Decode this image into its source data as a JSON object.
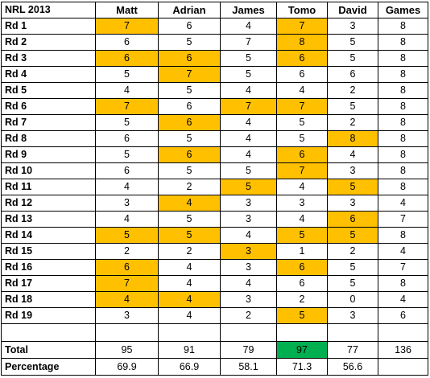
{
  "sheet": {
    "corner_label": "NRL 2013",
    "columns": [
      "Matt",
      "Adrian",
      "James",
      "Tomo",
      "David",
      "Games"
    ],
    "highlight_colors": {
      "best": "#ffc000",
      "winner": "#00b050"
    },
    "rows": [
      {
        "label": "Rd 1",
        "values": [
          "7",
          "6",
          "4",
          "7",
          "3",
          "8"
        ],
        "hl": [
          1,
          0,
          0,
          1,
          0,
          0
        ]
      },
      {
        "label": "Rd 2",
        "values": [
          "6",
          "5",
          "7",
          "8",
          "5",
          "8"
        ],
        "hl": [
          0,
          0,
          0,
          1,
          0,
          0
        ]
      },
      {
        "label": "Rd 3",
        "values": [
          "6",
          "6",
          "5",
          "6",
          "5",
          "8"
        ],
        "hl": [
          1,
          1,
          0,
          1,
          0,
          0
        ]
      },
      {
        "label": "Rd 4",
        "values": [
          "5",
          "7",
          "5",
          "6",
          "6",
          "8"
        ],
        "hl": [
          0,
          1,
          0,
          0,
          0,
          0
        ]
      },
      {
        "label": "Rd 5",
        "values": [
          "4",
          "5",
          "4",
          "4",
          "2",
          "8"
        ],
        "hl": [
          0,
          0,
          0,
          0,
          0,
          0
        ]
      },
      {
        "label": "Rd 6",
        "values": [
          "7",
          "6",
          "7",
          "7",
          "5",
          "8"
        ],
        "hl": [
          1,
          0,
          1,
          1,
          0,
          0
        ]
      },
      {
        "label": "Rd 7",
        "values": [
          "5",
          "6",
          "4",
          "5",
          "2",
          "8"
        ],
        "hl": [
          0,
          1,
          0,
          0,
          0,
          0
        ]
      },
      {
        "label": "Rd 8",
        "values": [
          "6",
          "5",
          "4",
          "5",
          "8",
          "8"
        ],
        "hl": [
          0,
          0,
          0,
          0,
          1,
          0
        ]
      },
      {
        "label": "Rd 9",
        "values": [
          "5",
          "6",
          "4",
          "6",
          "4",
          "8"
        ],
        "hl": [
          0,
          1,
          0,
          1,
          0,
          0
        ]
      },
      {
        "label": "Rd 10",
        "values": [
          "6",
          "5",
          "5",
          "7",
          "3",
          "8"
        ],
        "hl": [
          0,
          0,
          0,
          1,
          0,
          0
        ]
      },
      {
        "label": "Rd 11",
        "values": [
          "4",
          "2",
          "5",
          "4",
          "5",
          "8"
        ],
        "hl": [
          0,
          0,
          1,
          0,
          1,
          0
        ]
      },
      {
        "label": "Rd 12",
        "values": [
          "3",
          "4",
          "3",
          "3",
          "3",
          "4"
        ],
        "hl": [
          0,
          1,
          0,
          0,
          0,
          0
        ]
      },
      {
        "label": "Rd 13",
        "values": [
          "4",
          "5",
          "3",
          "4",
          "6",
          "7"
        ],
        "hl": [
          0,
          0,
          0,
          0,
          1,
          0
        ]
      },
      {
        "label": "Rd 14",
        "values": [
          "5",
          "5",
          "4",
          "5",
          "5",
          "8"
        ],
        "hl": [
          1,
          1,
          0,
          1,
          1,
          0
        ]
      },
      {
        "label": "Rd 15",
        "values": [
          "2",
          "2",
          "3",
          "1",
          "2",
          "4"
        ],
        "hl": [
          0,
          0,
          1,
          0,
          0,
          0
        ]
      },
      {
        "label": "Rd 16",
        "values": [
          "6",
          "4",
          "3",
          "6",
          "5",
          "7"
        ],
        "hl": [
          1,
          0,
          0,
          1,
          0,
          0
        ]
      },
      {
        "label": "Rd 17",
        "values": [
          "7",
          "4",
          "4",
          "6",
          "5",
          "8"
        ],
        "hl": [
          1,
          0,
          0,
          0,
          0,
          0
        ]
      },
      {
        "label": "Rd 18",
        "values": [
          "4",
          "4",
          "3",
          "2",
          "0",
          "4"
        ],
        "hl": [
          1,
          1,
          0,
          0,
          0,
          0
        ]
      },
      {
        "label": "Rd 19",
        "values": [
          "3",
          "4",
          "2",
          "5",
          "3",
          "6"
        ],
        "hl": [
          0,
          0,
          0,
          1,
          0,
          0
        ]
      }
    ],
    "total": {
      "label": "Total",
      "values": [
        "95",
        "91",
        "79",
        "97",
        "77",
        "136"
      ],
      "winner_index": 3
    },
    "percentage": {
      "label": "Percentage",
      "values": [
        "69.9",
        "66.9",
        "58.1",
        "71.3",
        "56.6",
        ""
      ]
    }
  }
}
